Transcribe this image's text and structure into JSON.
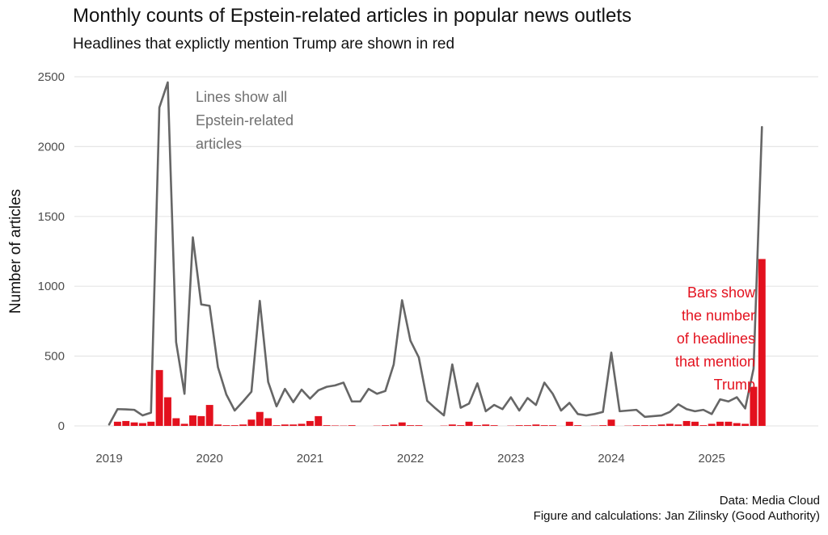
{
  "chart_data": {
    "type": "bar+line",
    "title": "Monthly counts of Epstein-related articles in popular news outlets",
    "subtitle": "Headlines that explictly mention Trump are shown in red",
    "ylabel": "Number of articles",
    "xlabel": "",
    "ylim": [
      0,
      2500
    ],
    "yticks": [
      0,
      500,
      1000,
      1500,
      2000,
      2500
    ],
    "x_start": "2019-01",
    "xticks": [
      "2019",
      "2020",
      "2021",
      "2022",
      "2023",
      "2024",
      "2025"
    ],
    "grid": "horizontal",
    "series": [
      {
        "type": "line",
        "color": "#666666",
        "values": [
          10,
          120,
          118,
          115,
          75,
          95,
          2280,
          2460,
          600,
          230,
          1350,
          870,
          860,
          420,
          225,
          110,
          175,
          245,
          895,
          315,
          140,
          265,
          170,
          260,
          195,
          255,
          280,
          290,
          310,
          175,
          175,
          265,
          230,
          250,
          440,
          900,
          610,
          490,
          180,
          125,
          75,
          440,
          130,
          160,
          305,
          105,
          150,
          120,
          205,
          110,
          200,
          150,
          310,
          230,
          110,
          165,
          85,
          75,
          85,
          100,
          525,
          105,
          110,
          115,
          65,
          70,
          75,
          100,
          155,
          120,
          105,
          115,
          85,
          190,
          175,
          205,
          125,
          410,
          2140
        ]
      },
      {
        "type": "bar",
        "color": "#e3111e",
        "values": [
          0,
          30,
          35,
          25,
          20,
          30,
          400,
          205,
          55,
          15,
          75,
          70,
          150,
          10,
          5,
          5,
          10,
          45,
          100,
          55,
          5,
          10,
          10,
          15,
          35,
          70,
          5,
          3,
          2,
          5,
          0,
          0,
          2,
          5,
          10,
          25,
          5,
          5,
          0,
          0,
          2,
          10,
          5,
          30,
          5,
          10,
          5,
          0,
          2,
          5,
          5,
          10,
          5,
          5,
          0,
          30,
          5,
          0,
          2,
          5,
          45,
          0,
          2,
          5,
          5,
          5,
          10,
          15,
          10,
          35,
          30,
          5,
          15,
          30,
          30,
          20,
          15,
          280,
          1195
        ]
      }
    ],
    "annotations": [
      {
        "text_lines": [
          "Lines show all",
          "Epstein-related",
          "articles"
        ],
        "color": "#707070"
      },
      {
        "text_lines": [
          "Bars show",
          "the number",
          "of headlines",
          "that mention",
          "Trump"
        ],
        "color": "#e3111e"
      }
    ]
  },
  "caption": {
    "line1": "Data: Media Cloud",
    "line2": "Figure and calculations: Jan Zilinsky (Good Authority)"
  }
}
